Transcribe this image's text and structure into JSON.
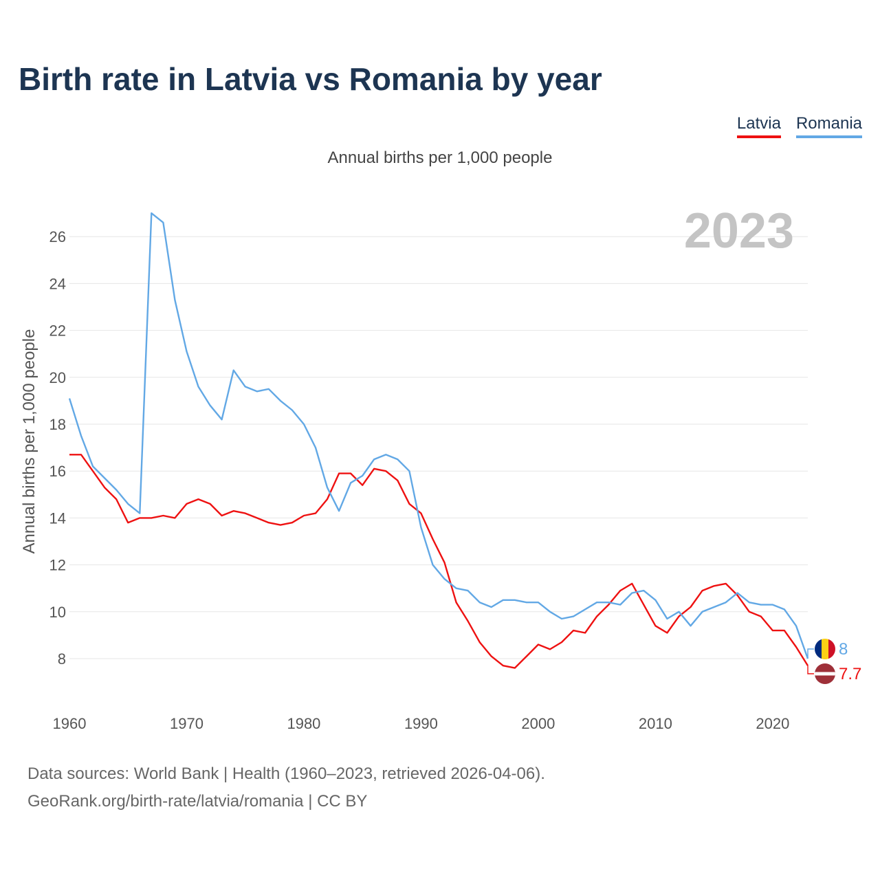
{
  "title": "Birth rate in Latvia vs Romania by year",
  "subtitle": "Annual births per 1,000 people",
  "legend": [
    {
      "label": "Latvia",
      "color": "#ee1111"
    },
    {
      "label": "Romania",
      "color": "#62a8e5"
    }
  ],
  "year_label": "2023",
  "footer": {
    "line1": "Data sources: World Bank | Health (1960–2023, retrieved 2026-04-06).",
    "line2": "GeoRank.org/birth-rate/latvia/romania | CC BY"
  },
  "chart_data": {
    "type": "line",
    "title": "Birth rate in Latvia vs Romania by year",
    "ylabel": "Annual births per 1,000 people",
    "xlabel": "",
    "xlim": [
      1960,
      2023
    ],
    "ylim": [
      7,
      27
    ],
    "x_ticks": [
      "1960",
      "1970",
      "1980",
      "1990",
      "2000",
      "2010",
      "2020"
    ],
    "y_ticks": [
      "8",
      "10",
      "12",
      "14",
      "16",
      "18",
      "20",
      "22",
      "24",
      "26"
    ],
    "x": [
      1960,
      1961,
      1962,
      1963,
      1964,
      1965,
      1966,
      1967,
      1968,
      1969,
      1970,
      1971,
      1972,
      1973,
      1974,
      1975,
      1976,
      1977,
      1978,
      1979,
      1980,
      1981,
      1982,
      1983,
      1984,
      1985,
      1986,
      1987,
      1988,
      1989,
      1990,
      1991,
      1992,
      1993,
      1994,
      1995,
      1996,
      1997,
      1998,
      1999,
      2000,
      2001,
      2002,
      2003,
      2004,
      2005,
      2006,
      2007,
      2008,
      2009,
      2010,
      2011,
      2012,
      2013,
      2014,
      2015,
      2016,
      2017,
      2018,
      2019,
      2020,
      2021,
      2022,
      2023
    ],
    "series": [
      {
        "name": "Latvia",
        "color": "#ee1111",
        "end_label": "7.7",
        "values": [
          16.7,
          16.7,
          16.0,
          15.3,
          14.8,
          13.8,
          14.0,
          14.0,
          14.1,
          14.0,
          14.6,
          14.8,
          14.6,
          14.1,
          14.3,
          14.2,
          14.0,
          13.8,
          13.7,
          13.8,
          14.1,
          14.2,
          14.8,
          15.9,
          15.9,
          15.4,
          16.1,
          16.0,
          15.6,
          14.6,
          14.2,
          13.1,
          12.1,
          10.4,
          9.6,
          8.7,
          8.1,
          7.7,
          7.6,
          8.1,
          8.6,
          8.4,
          8.7,
          9.2,
          9.1,
          9.8,
          10.3,
          10.9,
          11.2,
          10.3,
          9.4,
          9.1,
          9.8,
          10.2,
          10.9,
          11.1,
          11.2,
          10.7,
          10.0,
          9.8,
          9.2,
          9.2,
          8.5,
          7.7
        ]
      },
      {
        "name": "Romania",
        "color": "#62a8e5",
        "end_label": "8",
        "values": [
          19.1,
          17.5,
          16.2,
          15.7,
          15.2,
          14.6,
          14.2,
          27.0,
          26.6,
          23.3,
          21.1,
          19.6,
          18.8,
          18.2,
          20.3,
          19.6,
          19.4,
          19.5,
          19.0,
          18.6,
          18.0,
          17.0,
          15.3,
          14.3,
          15.5,
          15.8,
          16.5,
          16.7,
          16.5,
          16.0,
          13.6,
          12.0,
          11.4,
          11.0,
          10.9,
          10.4,
          10.2,
          10.5,
          10.5,
          10.4,
          10.4,
          10.0,
          9.7,
          9.8,
          10.1,
          10.4,
          10.4,
          10.3,
          10.8,
          10.9,
          10.5,
          9.7,
          10.0,
          9.4,
          10.0,
          10.2,
          10.4,
          10.8,
          10.4,
          10.3,
          10.3,
          10.1,
          9.4,
          8.0
        ]
      }
    ]
  }
}
